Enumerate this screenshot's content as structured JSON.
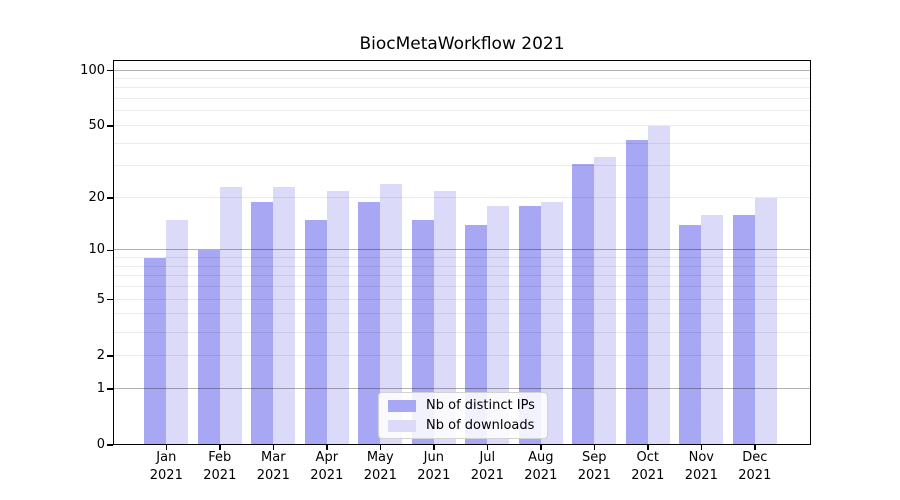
{
  "title": "BiocMetaWorkflow 2021",
  "chart_data": {
    "type": "bar",
    "title": "BiocMetaWorkflow 2021",
    "categories": [
      "Jan 2021",
      "Feb 2021",
      "Mar 2021",
      "Apr 2021",
      "May 2021",
      "Jun 2021",
      "Jul 2021",
      "Aug 2021",
      "Sep 2021",
      "Oct 2021",
      "Nov 2021",
      "Dec 2021"
    ],
    "series": [
      {
        "name": "Nb of distinct IPs",
        "color": "#a7a7f3",
        "values": [
          9,
          10,
          19,
          15,
          19,
          15,
          14,
          18,
          31,
          42,
          14,
          16
        ]
      },
      {
        "name": "Nb of downloads",
        "color": "#dbdbf9",
        "values": [
          15,
          23,
          23,
          22,
          24,
          22,
          18,
          19,
          34,
          50,
          16,
          20
        ]
      }
    ],
    "xlabel": "",
    "ylabel": "",
    "yscale": "log1p",
    "ylim": [
      0,
      114
    ],
    "y_ticks": [
      0,
      1,
      2,
      5,
      10,
      20,
      50,
      100
    ],
    "y_minor_gridlines": [
      2,
      3,
      4,
      5,
      6,
      7,
      8,
      9,
      20,
      30,
      40,
      50,
      60,
      70,
      80,
      90
    ],
    "y_major_gridlines": [
      1,
      10,
      100
    ],
    "grid": true,
    "legend_position": "lower center"
  },
  "legend": {
    "items": [
      "Nb of distinct IPs",
      "Nb of downloads"
    ]
  }
}
